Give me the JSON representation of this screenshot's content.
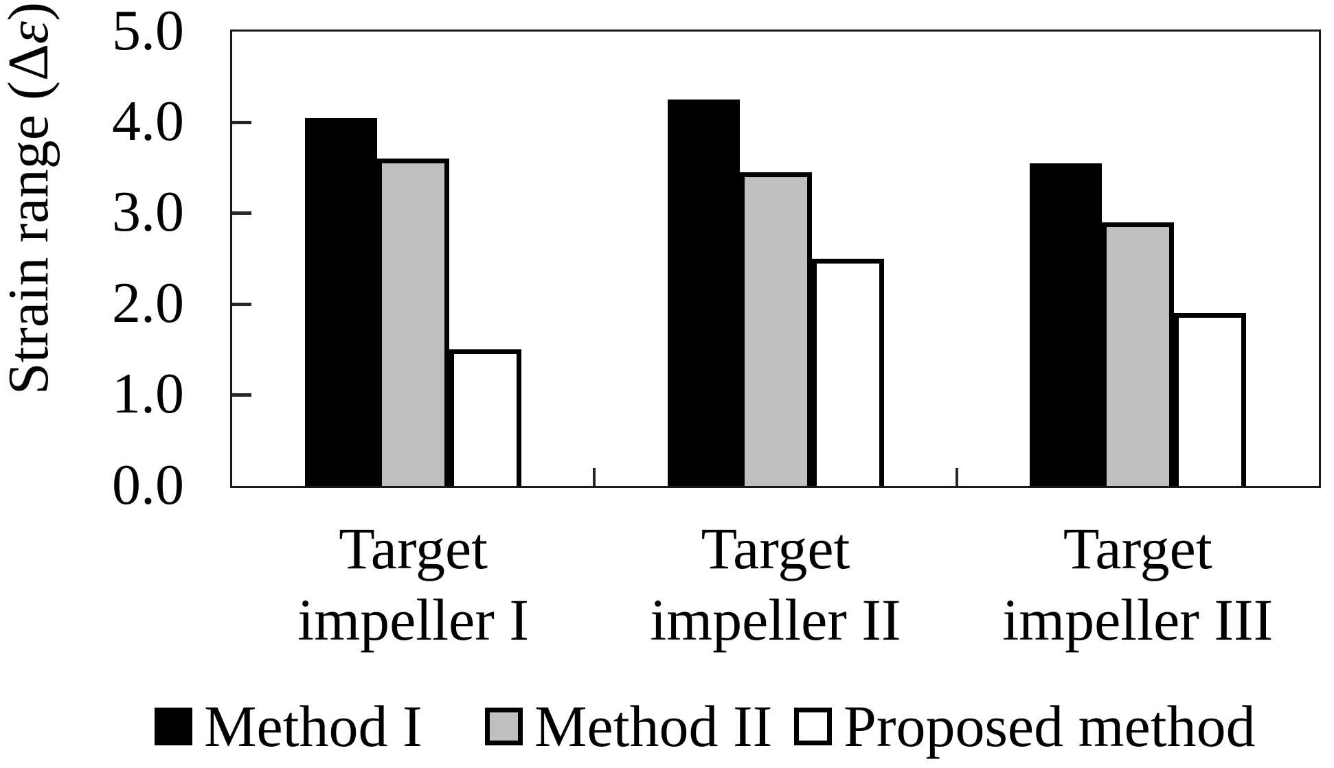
{
  "figure": {
    "background": "#ffffff",
    "frame_color": "#1a1a1a",
    "bar_border_color": "#000000"
  },
  "ylabel_parts": {
    "prefix": "Strain range (",
    "delta": "Δ",
    "epsilon": "ε",
    "suffix": ")"
  },
  "chart_data": {
    "type": "bar",
    "title": "",
    "xlabel": "",
    "ylabel": "Strain range (Δε)",
    "categories": [
      "Target impeller I",
      "Target impeller II",
      "Target impeller III"
    ],
    "category_label_lines": [
      [
        "Target",
        "impeller I"
      ],
      [
        "Target",
        "impeller II"
      ],
      [
        "Target",
        "impeller III"
      ]
    ],
    "series": [
      {
        "name": "Method I",
        "color": "#000000",
        "values": [
          4.05,
          4.25,
          3.55
        ]
      },
      {
        "name": "Method II",
        "color": "#bfbfbf",
        "values": [
          3.6,
          3.45,
          2.9
        ]
      },
      {
        "name": "Proposed method",
        "color": "#ffffff",
        "values": [
          1.5,
          2.5,
          1.9
        ]
      }
    ],
    "ylim": [
      0,
      5
    ],
    "yticks": [
      0,
      1,
      2,
      3,
      4,
      5
    ],
    "ytick_labels": [
      "0.0",
      "1.0",
      "2.0",
      "3.0",
      "4.0",
      "5.0"
    ],
    "grid": false,
    "legend_position": "bottom",
    "legend_item_x": [
      225,
      706,
      1156
    ]
  }
}
